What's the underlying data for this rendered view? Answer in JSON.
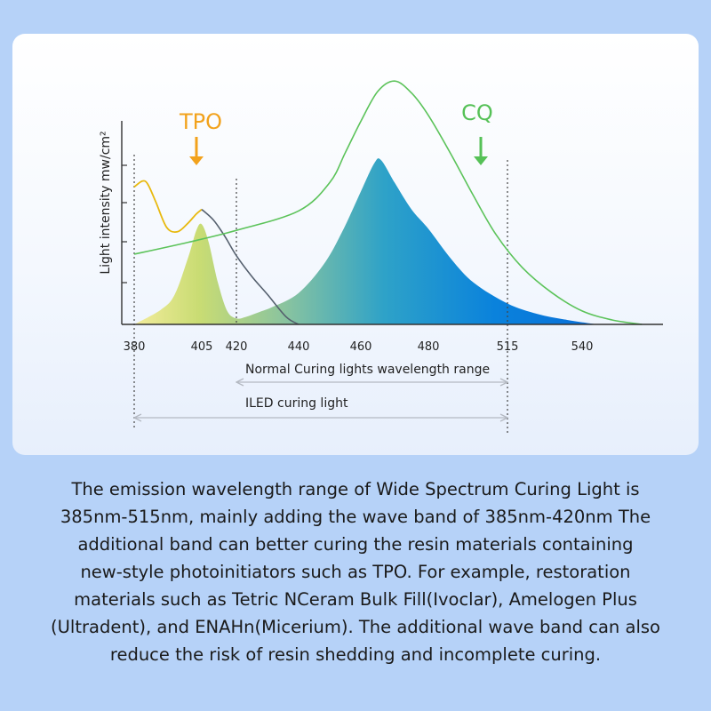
{
  "chart_data": {
    "type": "area",
    "title": "",
    "xlabel": "",
    "ylabel": "Light intensity mw/cm²",
    "x_tick_labels": [
      "380",
      "405",
      "420",
      "440",
      "460",
      "480",
      "515",
      "540"
    ],
    "x_ticks": [
      380,
      405,
      420,
      440,
      460,
      480,
      515,
      540
    ],
    "grid": false,
    "series": [
      {
        "name": "TPO",
        "kind": "line",
        "color": "#e8b90e",
        "x": [
          380,
          383,
          385,
          388,
          392,
          396,
          400,
          403,
          405,
          410,
          415,
          420,
          425,
          430,
          436,
          440
        ],
        "y": [
          92,
          96,
          94,
          82,
          65,
          62,
          68,
          74,
          77,
          70,
          59,
          46,
          32,
          20,
          5,
          0
        ]
      },
      {
        "name": "CQ",
        "kind": "line",
        "color": "#5cc35a",
        "x": [
          380,
          400,
          420,
          440,
          450,
          455,
          460,
          465,
          470,
          475,
          480,
          490,
          500,
          510,
          520,
          530,
          540,
          550,
          560
        ],
        "y": [
          47,
          55,
          63,
          76,
          95,
          115,
          136,
          156,
          163,
          155,
          140,
          114,
          86,
          60,
          38,
          21,
          9,
          3,
          0
        ]
      },
      {
        "name": "",
        "kind": "filled",
        "x": [
          380,
          390,
          395,
          400,
          403,
          405,
          408,
          412,
          416,
          420,
          423,
          427,
          432,
          440,
          448,
          454,
          460,
          464,
          466,
          470,
          475,
          480,
          490,
          500,
          515,
          525,
          535,
          545
        ],
        "y": [
          0,
          10,
          20,
          45,
          63,
          67,
          55,
          28,
          9,
          4,
          5,
          8,
          12,
          21,
          40,
          62,
          89,
          108,
          110,
          95,
          77,
          64,
          44,
          28,
          14,
          7,
          3,
          0
        ]
      }
    ],
    "annotations": [
      {
        "text": "TPO",
        "x": 405,
        "color": "#f2a21c"
      },
      {
        "text": "CQ",
        "x": 500,
        "color": "#56c157"
      }
    ],
    "ranges": [
      {
        "label": "Normal Curing lights wavelength range",
        "from": 420,
        "to": 515
      },
      {
        "label": "ILED curing light",
        "from": 380,
        "to": 515
      }
    ]
  },
  "caption_lines": [
    "The emission wavelength range of Wide Spectrum Curing Light is",
    "385nm-515nm, mainly adding the wave band of 385nm-420nm The",
    "additional band can better curing the resin materials containing",
    "new-style photoinitiators such as TPO. For example, restoration",
    "materials such as Tetric NCeram Bulk Fill(Ivoclar), Amelogen Plus",
    "(Ultradent), and ENAHn(Micerium). The additional wave band can also",
    "reduce the risk of resin shedding and incomplete curing."
  ]
}
